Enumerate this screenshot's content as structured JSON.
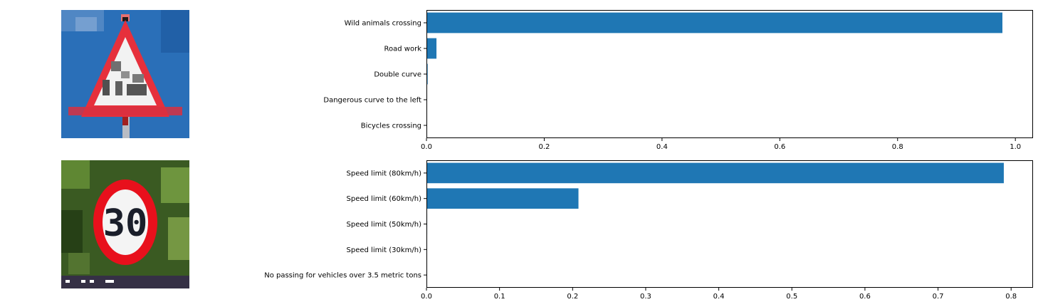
{
  "images": [
    {
      "name": "wild-animals-warning-sign-image",
      "icon": "triangular-warning-sign"
    },
    {
      "name": "speed-limit-30-sign-image",
      "icon": "speed-limit-sign",
      "sign_text": "30"
    }
  ],
  "chart_data": [
    {
      "type": "bar",
      "orientation": "horizontal",
      "categories": [
        "Wild animals crossing",
        "Road work",
        "Double curve",
        "Dangerous curve to the left",
        "Bicycles crossing"
      ],
      "values": [
        0.978,
        0.017,
        0.002,
        0.001,
        0.001
      ],
      "xlim": [
        0,
        1.03
      ],
      "xticks": [
        "0.0",
        "0.2",
        "0.4",
        "0.6",
        "0.8",
        "1.0"
      ],
      "bar_color": "#1f77b4",
      "grid": false
    },
    {
      "type": "bar",
      "orientation": "horizontal",
      "categories": [
        "Speed limit (80km/h)",
        "Speed limit (60km/h)",
        "Speed limit (50km/h)",
        "Speed limit (30km/h)",
        "No passing for vehicles over 3.5 metric tons"
      ],
      "values": [
        0.79,
        0.208,
        0.001,
        0.0005,
        0.0002
      ],
      "xlim": [
        0,
        0.83
      ],
      "xticks": [
        "0.0",
        "0.1",
        "0.2",
        "0.3",
        "0.4",
        "0.5",
        "0.6",
        "0.7",
        "0.8"
      ],
      "bar_color": "#1f77b4",
      "grid": false
    }
  ]
}
